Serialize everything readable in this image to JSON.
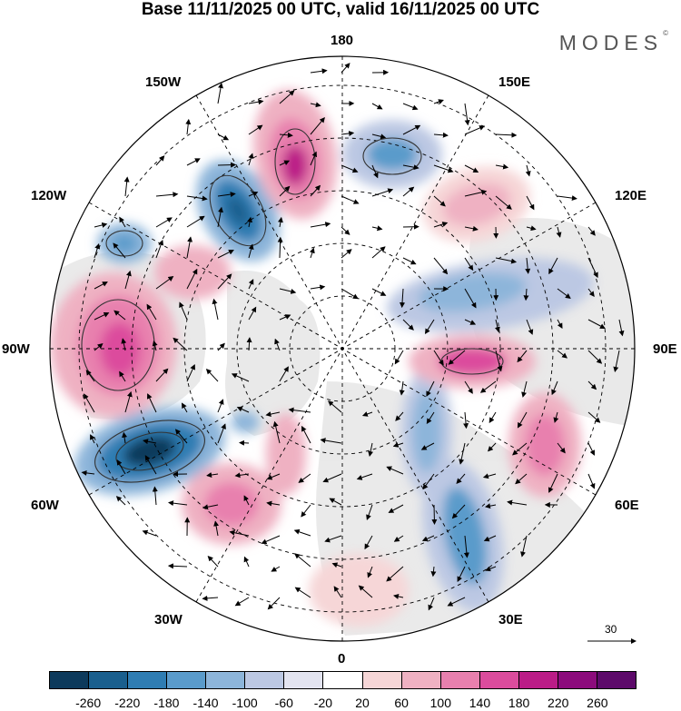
{
  "title": "Base 11/11/2025 00 UTC, valid 16/11/2025 00 UTC",
  "brand": "MODES",
  "brand_mark": "©",
  "longitude_labels": {
    "n180": "180",
    "w150": "150W",
    "e150": "150E",
    "w120": "120W",
    "e120": "120E",
    "w90": "90W",
    "e90": "90E",
    "w60": "60W",
    "e60": "60E",
    "w30": "30W",
    "e30": "30E",
    "s0": "0"
  },
  "reference_vector": {
    "label": "30"
  },
  "colorbar": {
    "colors": [
      "#0d3a5c",
      "#1a5f8e",
      "#2f7db3",
      "#5a9bcb",
      "#8db5da",
      "#bcc8e3",
      "#e3e4f0",
      "#ffffff",
      "#f6d6d7",
      "#efb1c2",
      "#e880ae",
      "#dc4c9d",
      "#bb1c87",
      "#8c0b7c",
      "#5d0a6a"
    ],
    "labels": [
      "-260",
      "-220",
      "-180",
      "-140",
      "-100",
      "-60",
      "-20",
      "20",
      "60",
      "100",
      "140",
      "180",
      "220",
      "260"
    ]
  }
}
